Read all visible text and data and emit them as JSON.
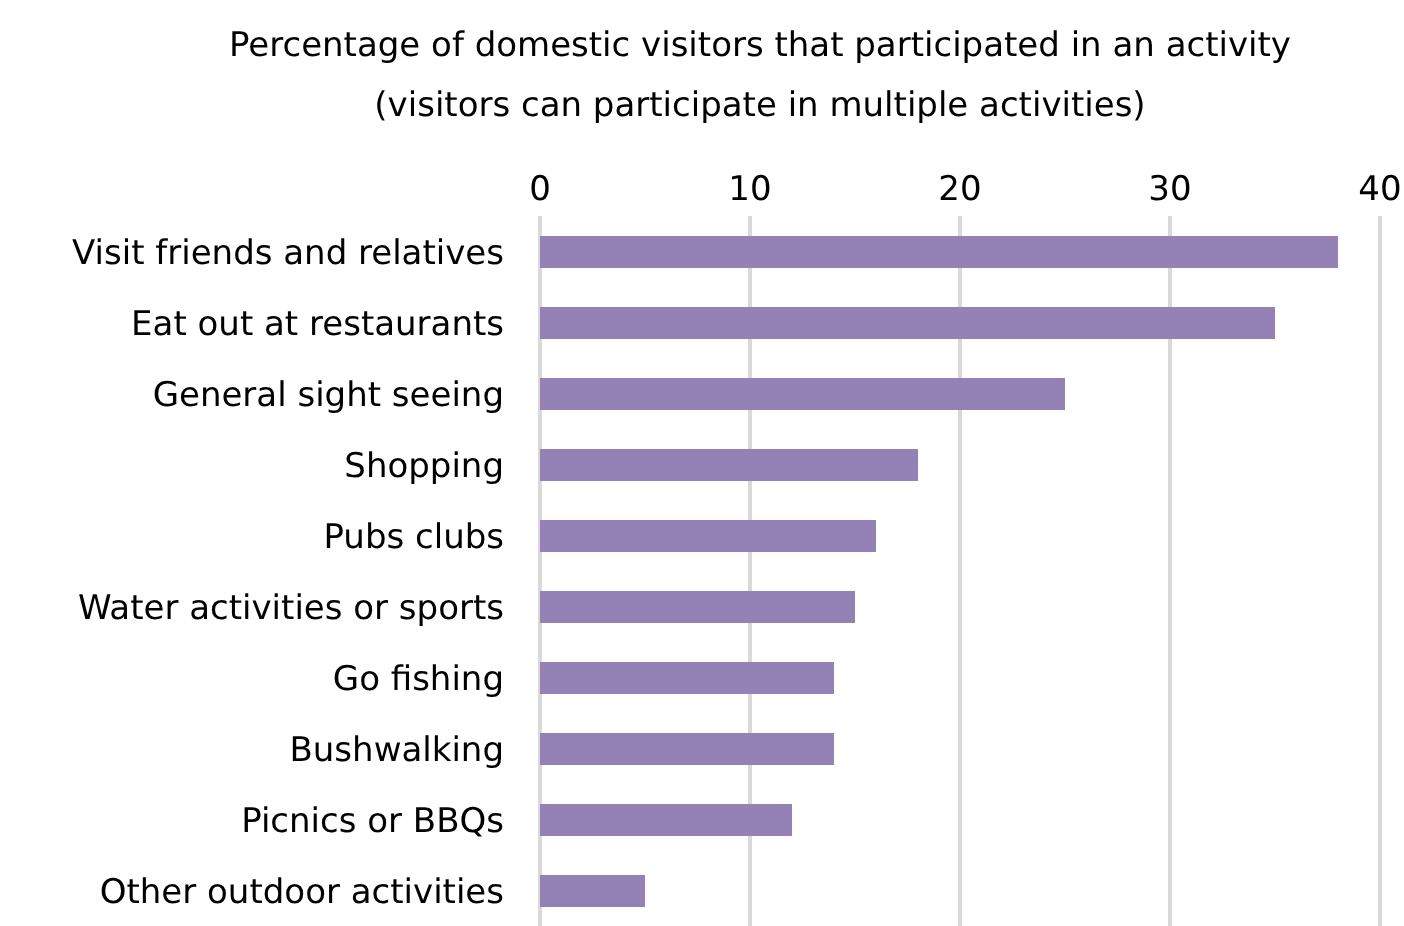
{
  "chart_data": {
    "type": "bar",
    "orientation": "horizontal",
    "title": "Percentage of domestic visitors that participated in an activity\n(visitors can participate in multiple activities)",
    "categories": [
      "Visit friends and relatives",
      "Eat out at restaurants",
      "General sight seeing",
      "Shopping",
      "Pubs clubs",
      "Water activities or sports",
      "Go fishing",
      "Bushwalking",
      "Picnics or BBQs",
      "Other outdoor activities"
    ],
    "values": [
      38,
      35,
      25,
      18,
      16,
      15,
      14,
      14,
      12,
      5
    ],
    "color": "#9482b6",
    "xlim": [
      0,
      40
    ],
    "xticks": [
      0,
      10,
      20,
      30,
      40
    ],
    "grid": "x"
  }
}
